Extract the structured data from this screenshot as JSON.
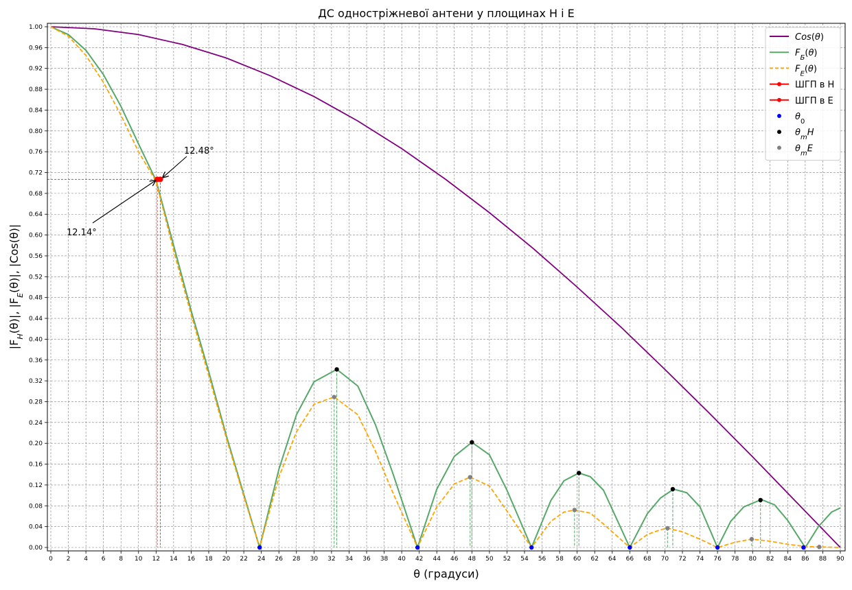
{
  "chart_data": {
    "type": "line",
    "title": "ДС одностріжневої антени у площинах H і E",
    "xlabel": "θ (градуси)",
    "ylabel": "|F_H(θ)|, |F_E(θ)|, |Cos(θ)|",
    "xlim": [
      0,
      90
    ],
    "ylim": [
      0,
      1.0
    ],
    "x_ticks": [
      0,
      2,
      4,
      6,
      8,
      10,
      12,
      14,
      16,
      18,
      20,
      22,
      24,
      26,
      28,
      30,
      32,
      34,
      36,
      38,
      40,
      42,
      44,
      46,
      48,
      50,
      52,
      54,
      56,
      58,
      60,
      62,
      64,
      66,
      68,
      70,
      72,
      74,
      76,
      78,
      80,
      82,
      84,
      86,
      88,
      90
    ],
    "y_ticks": [
      "0.00",
      "0.04",
      "0.08",
      "0.12",
      "0.16",
      "0.20",
      "0.24",
      "0.28",
      "0.32",
      "0.36",
      "0.40",
      "0.44",
      "0.48",
      "0.52",
      "0.56",
      "0.60",
      "0.64",
      "0.68",
      "0.72",
      "0.76",
      "0.80",
      "0.84",
      "0.88",
      "0.92",
      "0.96",
      "1.00"
    ],
    "grid": true,
    "legend_position": "top-right",
    "colors": {
      "cos": "#800080",
      "fh": "#55a868",
      "fe": "#ffa500",
      "hpbw": "#ff0000",
      "theta0": "#0000ff",
      "theta_m_h": "#000000",
      "theta_m_e": "#808080",
      "grid": "#808080"
    },
    "series": [
      {
        "name": "Cos(θ)",
        "name_rich": [
          {
            "t": "Cos",
            "i": true
          },
          {
            "t": "("
          },
          {
            "t": "θ",
            "i": true
          },
          {
            "t": ")"
          }
        ],
        "style": "solid",
        "x": [
          0,
          5,
          10,
          15,
          20,
          25,
          30,
          35,
          40,
          45,
          50,
          55,
          60,
          65,
          70,
          75,
          80,
          85,
          90
        ],
        "y": [
          1.0,
          0.996,
          0.985,
          0.966,
          0.94,
          0.906,
          0.866,
          0.819,
          0.766,
          0.707,
          0.643,
          0.574,
          0.5,
          0.423,
          0.342,
          0.259,
          0.174,
          0.087,
          0.0
        ]
      },
      {
        "name": "F_Б(θ)",
        "name_rich": [
          {
            "t": "F",
            "i": true
          },
          {
            "t": "Б",
            "sub": true,
            "i": true
          },
          {
            "t": "("
          },
          {
            "t": "θ",
            "i": true
          },
          {
            "t": ")"
          }
        ],
        "style": "solid",
        "x": [
          0,
          2,
          4,
          6,
          8,
          10,
          12,
          14,
          16,
          18,
          20,
          22,
          23.8,
          26,
          28,
          30,
          32.6,
          35,
          37,
          39,
          41.8,
          44,
          46,
          48,
          50,
          52,
          54.8,
          57,
          58.5,
          60.2,
          61.5,
          63,
          66,
          68,
          69.5,
          71,
          72.5,
          74,
          76,
          77.5,
          79,
          81,
          82.5,
          84,
          86,
          87.5,
          89,
          90
        ],
        "y": [
          1.0,
          0.985,
          0.955,
          0.908,
          0.847,
          0.775,
          0.705,
          0.58,
          0.455,
          0.338,
          0.215,
          0.102,
          0.0,
          0.15,
          0.255,
          0.318,
          0.342,
          0.31,
          0.236,
          0.142,
          0.0,
          0.112,
          0.175,
          0.202,
          0.178,
          0.11,
          0.0,
          0.09,
          0.128,
          0.143,
          0.136,
          0.11,
          0.0,
          0.065,
          0.095,
          0.112,
          0.105,
          0.078,
          0.0,
          0.05,
          0.078,
          0.092,
          0.082,
          0.052,
          0.0,
          0.04,
          0.068,
          0.076
        ]
      },
      {
        "name": "F_E(θ)",
        "name_rich": [
          {
            "t": "F",
            "i": true
          },
          {
            "t": "E",
            "sub": true,
            "i": true
          },
          {
            "t": "("
          },
          {
            "t": "θ",
            "i": true
          },
          {
            "t": ")"
          }
        ],
        "style": "dashed",
        "x": [
          0,
          2,
          4,
          6,
          8,
          10,
          12,
          14,
          16,
          18,
          20,
          22,
          23.8,
          26,
          28,
          30,
          32.3,
          35,
          37,
          39,
          41.8,
          44,
          46,
          47.8,
          50,
          52,
          54.8,
          57,
          58.5,
          59.7,
          61.5,
          63,
          66,
          68,
          69.5,
          70.3,
          72,
          74,
          76,
          78,
          79.9,
          82,
          84,
          86,
          87.6,
          89,
          90
        ],
        "y": [
          1.0,
          0.982,
          0.945,
          0.893,
          0.83,
          0.76,
          0.703,
          0.57,
          0.447,
          0.33,
          0.21,
          0.098,
          0.0,
          0.135,
          0.222,
          0.275,
          0.289,
          0.255,
          0.185,
          0.105,
          0.0,
          0.078,
          0.122,
          0.135,
          0.118,
          0.07,
          0.0,
          0.05,
          0.068,
          0.072,
          0.066,
          0.045,
          0.0,
          0.025,
          0.034,
          0.037,
          0.03,
          0.016,
          0.0,
          0.01,
          0.016,
          0.012,
          0.006,
          0.002,
          0.001,
          0.0005,
          0.0
        ]
      },
      {
        "name": "ШГП в H",
        "style": "marker-line",
        "x": [
          12.48
        ],
        "y": [
          0.707
        ]
      },
      {
        "name": "ШГП в E",
        "style": "marker-line",
        "x": [
          12.14
        ],
        "y": [
          0.707
        ]
      },
      {
        "name": "θ0",
        "name_rich": [
          {
            "t": "θ",
            "i": true
          },
          {
            "t": "0",
            "sub": true
          }
        ],
        "style": "points",
        "x": [
          23.8,
          41.8,
          54.8,
          66.0,
          76.0,
          85.8
        ],
        "y": [
          0,
          0,
          0,
          0,
          0,
          0
        ]
      },
      {
        "name": "θmH",
        "name_rich": [
          {
            "t": "θ",
            "i": true
          },
          {
            "t": "m",
            "sub": true,
            "i": true
          },
          {
            "t": "H",
            "i": true
          }
        ],
        "style": "points",
        "x": [
          32.6,
          48.0,
          60.2,
          70.9,
          80.9
        ],
        "y": [
          0.342,
          0.202,
          0.143,
          0.112,
          0.091
        ]
      },
      {
        "name": "θmE",
        "name_rich": [
          {
            "t": "θ",
            "i": true
          },
          {
            "t": "m",
            "sub": true,
            "i": true
          },
          {
            "t": "E",
            "i": true
          }
        ],
        "style": "points",
        "x": [
          32.3,
          47.8,
          59.7,
          70.3,
          79.9,
          87.6
        ],
        "y": [
          0.289,
          0.135,
          0.072,
          0.037,
          0.016,
          0.001
        ]
      }
    ],
    "annotations": [
      {
        "text": "12.48°",
        "x": 12.48,
        "y": 0.707
      },
      {
        "text": "12.14°",
        "x": 12.14,
        "y": 0.707
      }
    ]
  }
}
